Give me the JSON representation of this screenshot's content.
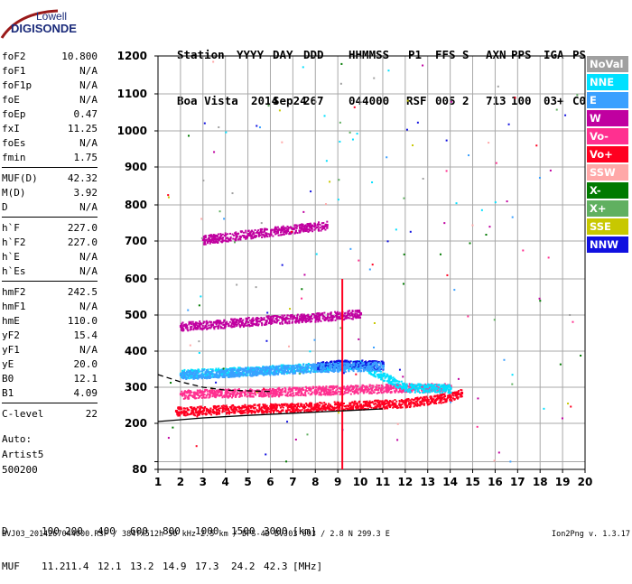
{
  "logo": {
    "line1": "Lowell",
    "line2": "DIGISONDE"
  },
  "header": {
    "row1": [
      "Station",
      "YYYY",
      "DAY",
      "DDD",
      "HHMMSS",
      "P1",
      "FFS",
      "S",
      "AXN",
      "PPS",
      "IGA",
      "PS"
    ],
    "row2": [
      "Boa Vista",
      "2014",
      "Sep24",
      "267",
      "044000",
      "RSF",
      "005",
      "2",
      "713",
      "100",
      "03+",
      "C0"
    ]
  },
  "params": [
    {
      "label": "foF2",
      "value": "10.800"
    },
    {
      "label": "foF1",
      "value": "N/A"
    },
    {
      "label": "foF1p",
      "value": "N/A"
    },
    {
      "label": "foE",
      "value": "N/A"
    },
    {
      "label": "foEp",
      "value": "0.47"
    },
    {
      "label": "fxI",
      "value": "11.25"
    },
    {
      "label": "foEs",
      "value": "N/A"
    },
    {
      "label": "fmin",
      "value": "1.75"
    },
    {
      "label": "MUF(D)",
      "value": "42.32",
      "sep": true
    },
    {
      "label": "M(D)",
      "value": "3.92"
    },
    {
      "label": "D",
      "value": "N/A"
    },
    {
      "label": "h`F",
      "value": "227.0",
      "sep": true
    },
    {
      "label": "h`F2",
      "value": "227.0"
    },
    {
      "label": "h`E",
      "value": "N/A"
    },
    {
      "label": "h`Es",
      "value": "N/A"
    },
    {
      "label": "hmF2",
      "value": "242.5",
      "sep": true
    },
    {
      "label": "hmF1",
      "value": "N/A"
    },
    {
      "label": "hmE",
      "value": "110.0"
    },
    {
      "label": "yF2",
      "value": "15.4"
    },
    {
      "label": "yF1",
      "value": "N/A"
    },
    {
      "label": "yE",
      "value": "20.0"
    },
    {
      "label": "B0",
      "value": "12.1"
    },
    {
      "label": "B1",
      "value": "4.09"
    },
    {
      "label": "C-level",
      "value": "22",
      "sep": true
    }
  ],
  "auto": {
    "line1": "Auto:",
    "line2": "Artist5",
    "line3": "500200"
  },
  "legend": [
    {
      "label": "NoVal",
      "color": "#a0a0a0"
    },
    {
      "label": "NNE",
      "color": "#00e0ff"
    },
    {
      "label": "E",
      "color": "#3aa0ff"
    },
    {
      "label": "W",
      "color": "#c000a0"
    },
    {
      "label": "Vo-",
      "color": "#ff3090"
    },
    {
      "label": "Vo+",
      "color": "#ff0020"
    },
    {
      "label": "SSW",
      "color": "#ffa8a8"
    },
    {
      "label": "X-",
      "color": "#007a00"
    },
    {
      "label": "X+",
      "color": "#60b060"
    },
    {
      "label": "SSE",
      "color": "#c8c800"
    },
    {
      "label": "NNW",
      "color": "#1010e0"
    }
  ],
  "mufd": {
    "d_label": "D",
    "d_values": [
      "100",
      "200",
      "400",
      "600",
      "800",
      "1000",
      "1500",
      "3000"
    ],
    "d_unit": "[km]",
    "muf_label": "MUF",
    "muf_values": [
      "11.2",
      "11.4",
      "12.1",
      "13.2",
      "14.9",
      "17.3",
      "24.2",
      "42.3"
    ],
    "muf_unit": "[MHz]"
  },
  "footer": {
    "left": "BVJ03_2014267044000.RSF / 384fx512h 50 kHz 2.5 km / DPS-4D BVJ03 003 / 2.8 N 299.3 E",
    "right": "Ion2Png v. 1.3.17"
  },
  "chart_data": {
    "type": "scatter",
    "title": "",
    "xlabel": "",
    "ylabel": "",
    "xlim": [
      1,
      20
    ],
    "ylim": [
      80,
      1200
    ],
    "x_ticks": [
      1,
      2,
      3,
      4,
      5,
      6,
      7,
      8,
      9,
      10,
      11,
      12,
      13,
      14,
      15,
      16,
      17,
      18,
      19,
      20
    ],
    "y_ticks": [
      80,
      100,
      200,
      300,
      400,
      500,
      600,
      700,
      800,
      900,
      1000,
      1100,
      1200
    ],
    "y_tick_labels": [
      "80",
      "",
      "200",
      "300",
      "400",
      "500",
      "600",
      "700",
      "800",
      "900",
      "1000",
      "1100",
      "1200"
    ],
    "y_scale": "nonlinear (ionogram virtual height)",
    "grid": true,
    "series": [
      {
        "name": "Vo+",
        "color": "#ff0020",
        "points": [
          [
            1.8,
            235
          ],
          [
            2.5,
            236
          ],
          [
            3.2,
            238
          ],
          [
            4,
            240
          ],
          [
            5,
            242
          ],
          [
            6,
            244
          ],
          [
            7,
            246
          ],
          [
            8,
            248
          ],
          [
            9,
            250
          ],
          [
            10,
            252
          ],
          [
            11,
            255
          ],
          [
            12,
            258
          ],
          [
            13,
            265
          ],
          [
            14,
            275
          ],
          [
            14.5,
            285
          ]
        ]
      },
      {
        "name": "Vo-",
        "color": "#ff3090",
        "points": [
          [
            2,
            282
          ],
          [
            4,
            285
          ],
          [
            6,
            288
          ],
          [
            8,
            292
          ],
          [
            10,
            296
          ],
          [
            12,
            300
          ],
          [
            14,
            300
          ]
        ]
      },
      {
        "name": "NNE",
        "color": "#00e0ff",
        "points": [
          [
            2,
            338
          ],
          [
            4,
            343
          ],
          [
            6,
            350
          ],
          [
            8,
            357
          ],
          [
            10,
            364
          ],
          [
            12,
            300
          ],
          [
            14,
            298
          ]
        ]
      },
      {
        "name": "NNW",
        "color": "#1010e0",
        "points": [
          [
            8,
            360
          ],
          [
            9,
            365
          ],
          [
            10,
            365
          ],
          [
            11,
            362
          ]
        ]
      },
      {
        "name": "W",
        "color": "#c000a0",
        "points": [
          [
            2,
            470
          ],
          [
            4,
            478
          ],
          [
            6,
            488
          ],
          [
            8,
            495
          ],
          [
            10,
            505
          ],
          [
            3,
            705
          ],
          [
            5,
            720
          ],
          [
            7,
            735
          ],
          [
            8.5,
            745
          ]
        ]
      },
      {
        "name": "E",
        "color": "#3aa0ff",
        "points": [
          [
            2,
            335
          ],
          [
            5,
            345
          ],
          [
            8,
            355
          ],
          [
            11,
            360
          ]
        ]
      }
    ],
    "lines": [
      {
        "name": "",
        "color": "#000000",
        "points": [
          [
            1,
            205
          ],
          [
            3,
            215
          ],
          [
            5,
            222
          ],
          [
            7,
            228
          ],
          [
            9,
            234
          ],
          [
            11,
            240
          ]
        ]
      },
      {
        "name": "",
        "color": "#000000",
        "style": "dashed",
        "points": [
          [
            1,
            335
          ],
          [
            2,
            315
          ],
          [
            3,
            300
          ],
          [
            4,
            292
          ],
          [
            6,
            288
          ]
        ]
      }
    ],
    "vertical_marker": {
      "x": 9.2,
      "color": "#ff0020",
      "ymin": 80,
      "ymax": 600
    }
  }
}
